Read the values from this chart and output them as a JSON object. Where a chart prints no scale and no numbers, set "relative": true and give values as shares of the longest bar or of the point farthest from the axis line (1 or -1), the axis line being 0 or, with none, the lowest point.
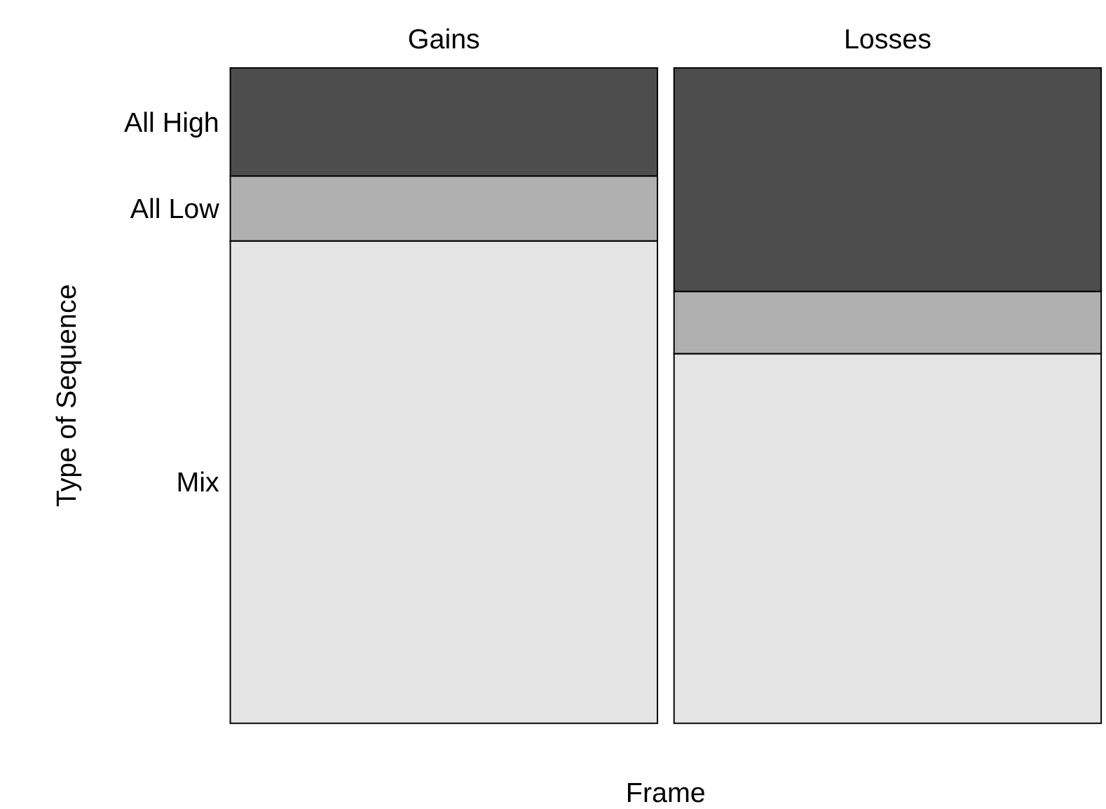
{
  "chart_data": {
    "type": "bar",
    "stacked": true,
    "relative": true,
    "xlabel": "Frame",
    "ylabel": "Type of Sequence",
    "categories": [
      "Gains",
      "Losses"
    ],
    "series": [
      {
        "name": "Mix",
        "color": "#e5e5e5",
        "values": [
          0.736,
          0.564
        ]
      },
      {
        "name": "All Low",
        "color": "#b0b0b0",
        "values": [
          0.099,
          0.095
        ]
      },
      {
        "name": "All High",
        "color": "#4d4d4d",
        "values": [
          0.165,
          0.341
        ]
      }
    ]
  }
}
